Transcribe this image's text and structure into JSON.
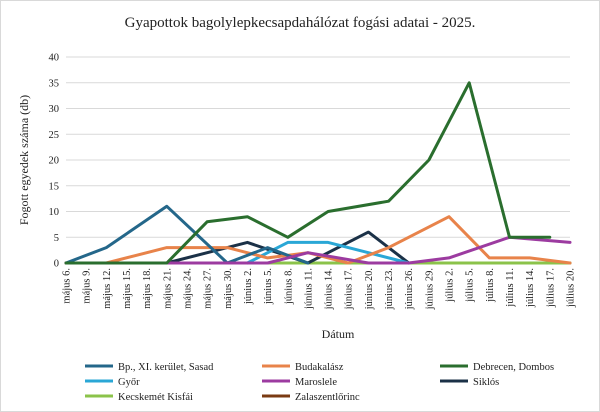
{
  "chart_data": {
    "type": "line",
    "title": "Gyapottok bagolylepkecsapdahálózat fogási adatai - 2025.",
    "xlabel": "Dátum",
    "ylabel": "Fogott egyedek száma (db)",
    "ylim": [
      0,
      40
    ],
    "yticks": [
      "0",
      "5",
      "10",
      "15",
      "20",
      "25",
      "30",
      "35",
      "40"
    ],
    "grid": true,
    "legend_position": "bottom",
    "categories": [
      "május 6.",
      "május 9.",
      "május 12.",
      "május 15.",
      "május 18.",
      "május 21.",
      "május 24.",
      "május 27.",
      "május 30.",
      "június 2.",
      "június 5.",
      "június 8.",
      "június 11.",
      "június 14.",
      "június 17.",
      "június 20.",
      "június 23.",
      "június 26.",
      "június 29.",
      "július 2.",
      "július 5.",
      "július 8.",
      "július 11.",
      "július 14.",
      "július 17.",
      "július 20."
    ],
    "series": [
      {
        "name": "Bp., XI. kerület, Sasad",
        "color": "#24678a",
        "points": [
          [
            0,
            0
          ],
          [
            2,
            3
          ],
          [
            5,
            11
          ],
          [
            8,
            0
          ],
          [
            10,
            3
          ],
          [
            12,
            0
          ]
        ]
      },
      {
        "name": "Budakalász",
        "color": "#e8834a",
        "points": [
          [
            0,
            0
          ],
          [
            2,
            0
          ],
          [
            5,
            3
          ],
          [
            8,
            3
          ],
          [
            10,
            1
          ],
          [
            12,
            2
          ],
          [
            14,
            0
          ],
          [
            16,
            3
          ],
          [
            19,
            9
          ],
          [
            21,
            1
          ],
          [
            23,
            1
          ],
          [
            25,
            0
          ]
        ]
      },
      {
        "name": "Debrecen, Dombos",
        "color": "#2a6e2e",
        "points": [
          [
            0,
            0
          ],
          [
            5,
            0
          ],
          [
            7,
            8
          ],
          [
            9,
            9
          ],
          [
            11,
            5
          ],
          [
            13,
            10
          ],
          [
            16,
            12
          ],
          [
            18,
            20
          ],
          [
            20,
            35
          ],
          [
            22,
            5
          ],
          [
            24,
            5
          ]
        ]
      },
      {
        "name": "Győr",
        "color": "#2aa7d6",
        "points": [
          [
            9,
            0
          ],
          [
            11,
            4
          ],
          [
            13,
            4
          ],
          [
            15,
            2
          ],
          [
            17,
            0
          ]
        ]
      },
      {
        "name": "Maroslele",
        "color": "#9c3ba0",
        "points": [
          [
            0,
            0
          ],
          [
            10,
            0
          ],
          [
            11,
            1
          ],
          [
            12,
            2
          ],
          [
            15,
            0
          ],
          [
            17,
            0
          ],
          [
            19,
            1
          ],
          [
            22,
            5
          ],
          [
            25,
            4
          ]
        ]
      },
      {
        "name": "Siklós",
        "color": "#1b3147",
        "points": [
          [
            0,
            0
          ],
          [
            5,
            0
          ],
          [
            9,
            4
          ],
          [
            12,
            0
          ],
          [
            15,
            6
          ],
          [
            17,
            0
          ]
        ]
      },
      {
        "name": "Kecskemét Kisfái",
        "color": "#8bc34a",
        "points": [
          [
            0,
            0
          ],
          [
            25,
            0
          ]
        ]
      },
      {
        "name": "Zalaszentlőrinc",
        "color": "#7a3a12",
        "points": [
          [
            0,
            0
          ],
          [
            25,
            0
          ]
        ]
      }
    ]
  }
}
